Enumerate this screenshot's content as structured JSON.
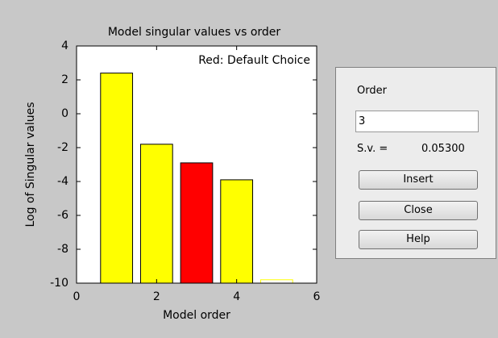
{
  "chart_data": {
    "type": "bar",
    "title": "Model singular values vs order",
    "annotation": "Red: Default Choice",
    "x_label": "Model order",
    "y_label": "Log of Singular values",
    "x": [
      1,
      2,
      3,
      4,
      5
    ],
    "values": [
      2.4,
      -1.8,
      -2.9,
      -3.9,
      -9.8
    ],
    "colors": [
      "#ffff00",
      "#ffff00",
      "#ff0000",
      "#ffff00",
      "#ffff00"
    ],
    "xlim": [
      0,
      6
    ],
    "xticks": [
      0,
      2,
      4,
      6
    ],
    "ylim": [
      -10,
      4
    ],
    "yticks": [
      4,
      2,
      0,
      -2,
      -4,
      -6,
      -8,
      -10
    ]
  },
  "panel": {
    "order_label": "Order",
    "order_value": "3",
    "sv_label": "S.v. =",
    "sv_value": "0.05300",
    "buttons": [
      "Insert",
      "Close",
      "Help"
    ]
  }
}
